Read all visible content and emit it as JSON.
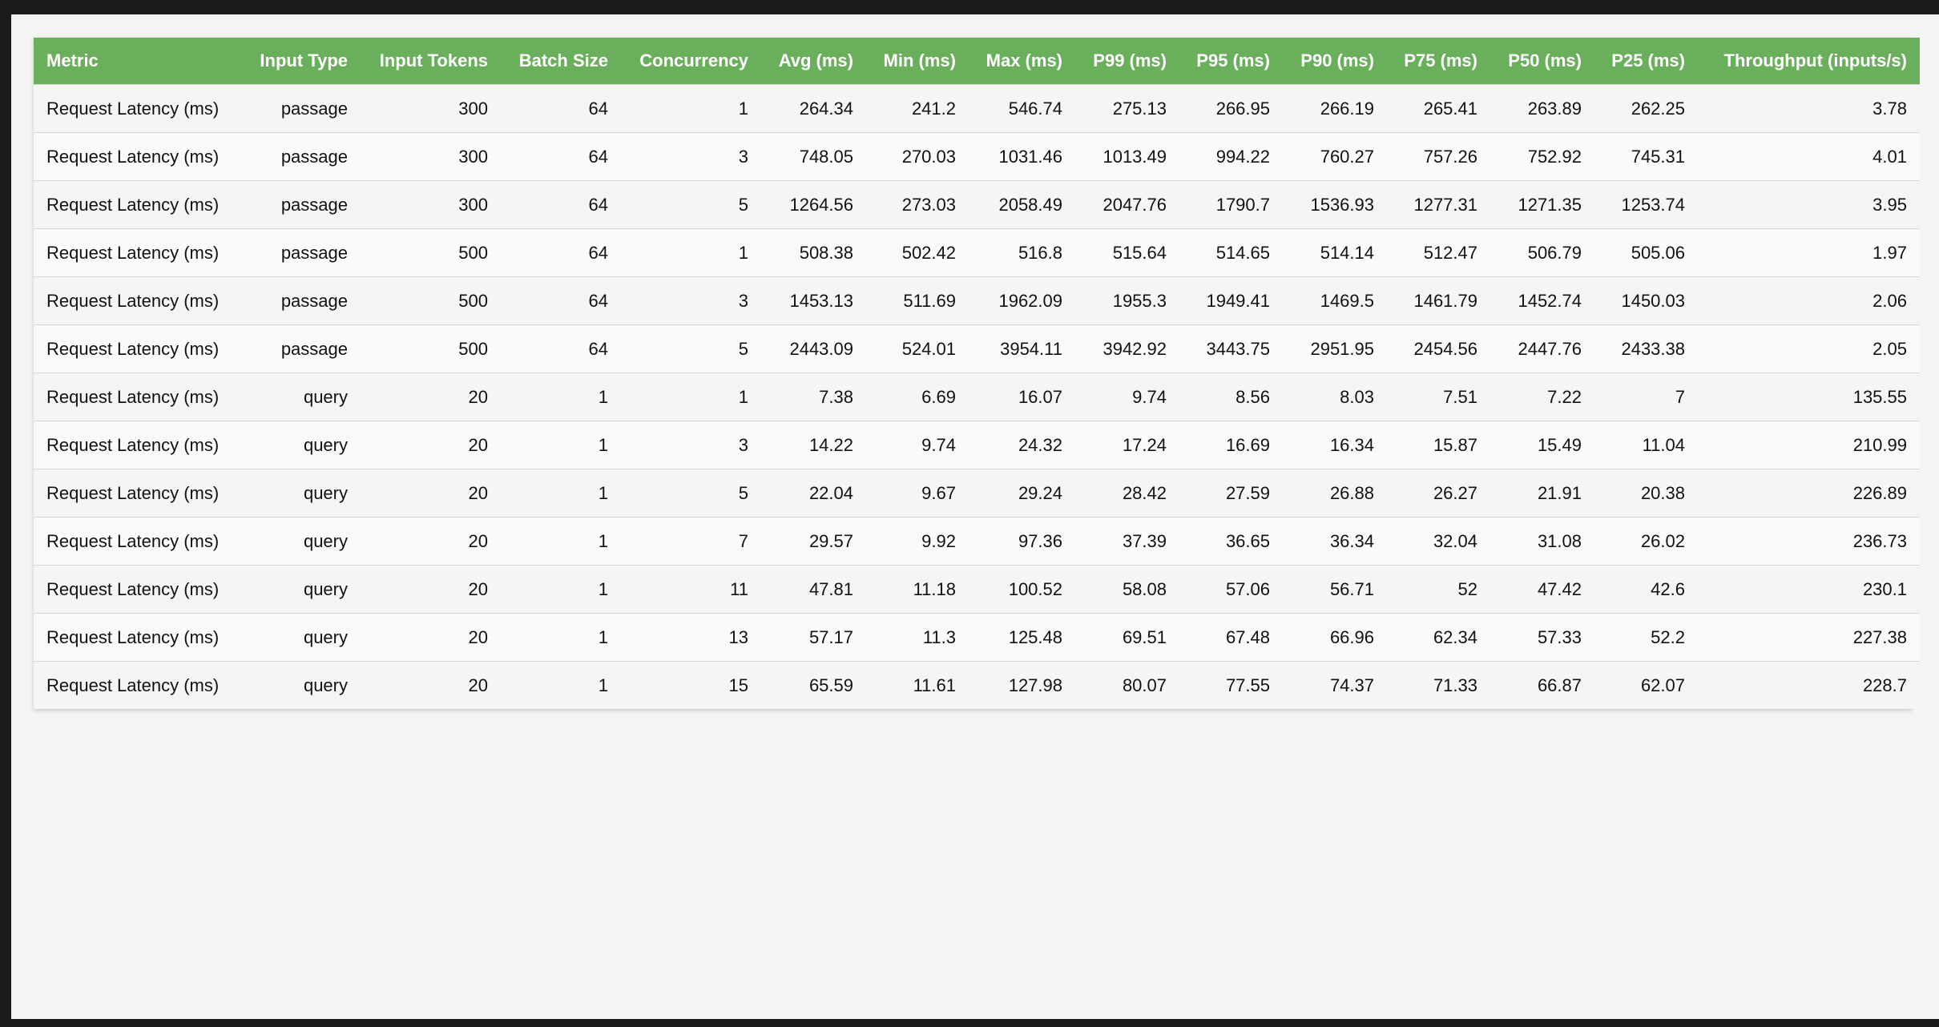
{
  "table": {
    "headers": [
      "Metric",
      "Input Type",
      "Input Tokens",
      "Batch Size",
      "Concurrency",
      "Avg (ms)",
      "Min (ms)",
      "Max (ms)",
      "P99 (ms)",
      "P95 (ms)",
      "P90 (ms)",
      "P75 (ms)",
      "P50 (ms)",
      "P25 (ms)",
      "Throughput (inputs/s)"
    ],
    "rows": [
      [
        "Request Latency (ms)",
        "passage",
        "300",
        "64",
        "1",
        "264.34",
        "241.2",
        "546.74",
        "275.13",
        "266.95",
        "266.19",
        "265.41",
        "263.89",
        "262.25",
        "3.78"
      ],
      [
        "Request Latency (ms)",
        "passage",
        "300",
        "64",
        "3",
        "748.05",
        "270.03",
        "1031.46",
        "1013.49",
        "994.22",
        "760.27",
        "757.26",
        "752.92",
        "745.31",
        "4.01"
      ],
      [
        "Request Latency (ms)",
        "passage",
        "300",
        "64",
        "5",
        "1264.56",
        "273.03",
        "2058.49",
        "2047.76",
        "1790.7",
        "1536.93",
        "1277.31",
        "1271.35",
        "1253.74",
        "3.95"
      ],
      [
        "Request Latency (ms)",
        "passage",
        "500",
        "64",
        "1",
        "508.38",
        "502.42",
        "516.8",
        "515.64",
        "514.65",
        "514.14",
        "512.47",
        "506.79",
        "505.06",
        "1.97"
      ],
      [
        "Request Latency (ms)",
        "passage",
        "500",
        "64",
        "3",
        "1453.13",
        "511.69",
        "1962.09",
        "1955.3",
        "1949.41",
        "1469.5",
        "1461.79",
        "1452.74",
        "1450.03",
        "2.06"
      ],
      [
        "Request Latency (ms)",
        "passage",
        "500",
        "64",
        "5",
        "2443.09",
        "524.01",
        "3954.11",
        "3942.92",
        "3443.75",
        "2951.95",
        "2454.56",
        "2447.76",
        "2433.38",
        "2.05"
      ],
      [
        "Request Latency (ms)",
        "query",
        "20",
        "1",
        "1",
        "7.38",
        "6.69",
        "16.07",
        "9.74",
        "8.56",
        "8.03",
        "7.51",
        "7.22",
        "7",
        "135.55"
      ],
      [
        "Request Latency (ms)",
        "query",
        "20",
        "1",
        "3",
        "14.22",
        "9.74",
        "24.32",
        "17.24",
        "16.69",
        "16.34",
        "15.87",
        "15.49",
        "11.04",
        "210.99"
      ],
      [
        "Request Latency (ms)",
        "query",
        "20",
        "1",
        "5",
        "22.04",
        "9.67",
        "29.24",
        "28.42",
        "27.59",
        "26.88",
        "26.27",
        "21.91",
        "20.38",
        "226.89"
      ],
      [
        "Request Latency (ms)",
        "query",
        "20",
        "1",
        "7",
        "29.57",
        "9.92",
        "97.36",
        "37.39",
        "36.65",
        "36.34",
        "32.04",
        "31.08",
        "26.02",
        "236.73"
      ],
      [
        "Request Latency (ms)",
        "query",
        "20",
        "1",
        "11",
        "47.81",
        "11.18",
        "100.52",
        "58.08",
        "57.06",
        "56.71",
        "52",
        "47.42",
        "42.6",
        "230.1"
      ],
      [
        "Request Latency (ms)",
        "query",
        "20",
        "1",
        "13",
        "57.17",
        "11.3",
        "125.48",
        "69.51",
        "67.48",
        "66.96",
        "62.34",
        "57.33",
        "52.2",
        "227.38"
      ],
      [
        "Request Latency (ms)",
        "query",
        "20",
        "1",
        "15",
        "65.59",
        "11.61",
        "127.98",
        "80.07",
        "77.55",
        "74.37",
        "71.33",
        "66.87",
        "62.07",
        "228.7"
      ]
    ]
  },
  "colors": {
    "header_background": "#6aaf5b",
    "header_text": "#ffffff",
    "frame_background": "#1b1b1b",
    "page_background": "#f4f4f4"
  }
}
